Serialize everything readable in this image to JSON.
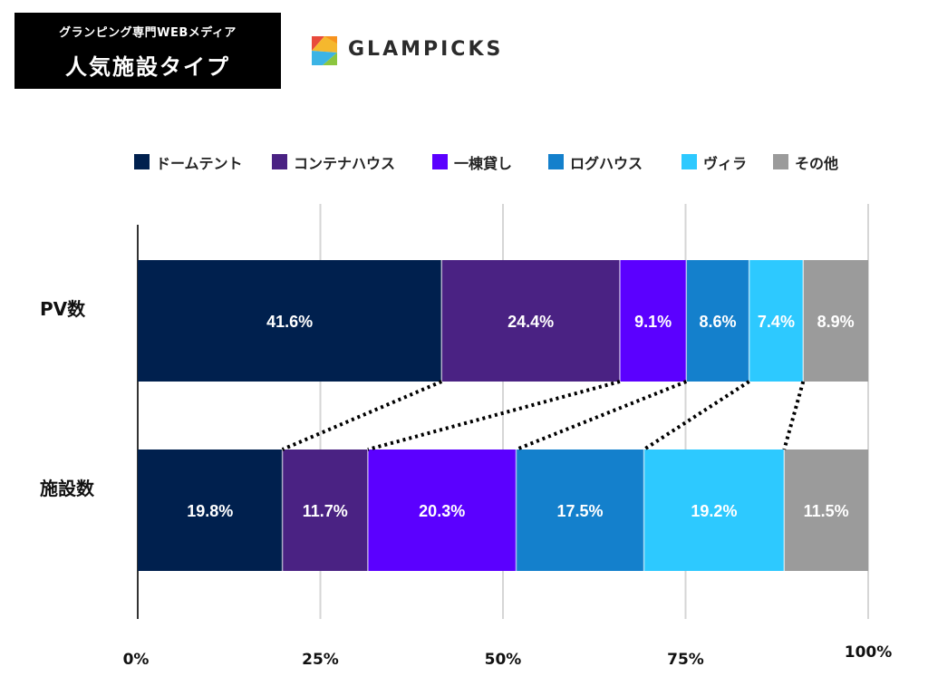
{
  "header": {
    "subtitle": "グランピング専門WEBメディア",
    "title": "人気施設タイプ"
  },
  "brand": {
    "name": "GLAMPICKS",
    "logo_colors": [
      "#e84a3c",
      "#f5b82e",
      "#3cb4e5",
      "#8cc63f",
      "#f7931e"
    ]
  },
  "chart_data": {
    "type": "bar",
    "orientation": "horizontal",
    "stacked": true,
    "categories": [
      "PV数",
      "施設数"
    ],
    "series": [
      {
        "name": "ドームテント",
        "color": "#00204e",
        "values": [
          41.6,
          19.8
        ]
      },
      {
        "name": "コンテナハウス",
        "color": "#4a2283",
        "values": [
          24.4,
          11.7
        ]
      },
      {
        "name": "一棟貸し",
        "color": "#5b00ff",
        "values": [
          9.1,
          20.3
        ]
      },
      {
        "name": "ログハウス",
        "color": "#1480cc",
        "values": [
          8.6,
          17.5
        ]
      },
      {
        "name": "ヴィラ",
        "color": "#2dc9ff",
        "values": [
          7.4,
          19.2
        ]
      },
      {
        "name": "その他",
        "color": "#9b9b9b",
        "values": [
          8.9,
          11.5
        ]
      }
    ],
    "xticks": [
      "0%",
      "25%",
      "50%",
      "75%",
      "100%"
    ],
    "xlim": [
      0,
      100
    ],
    "grid": true,
    "legend": "top",
    "connectors": "dotted lines linking matching segment boundaries between the two bars"
  }
}
